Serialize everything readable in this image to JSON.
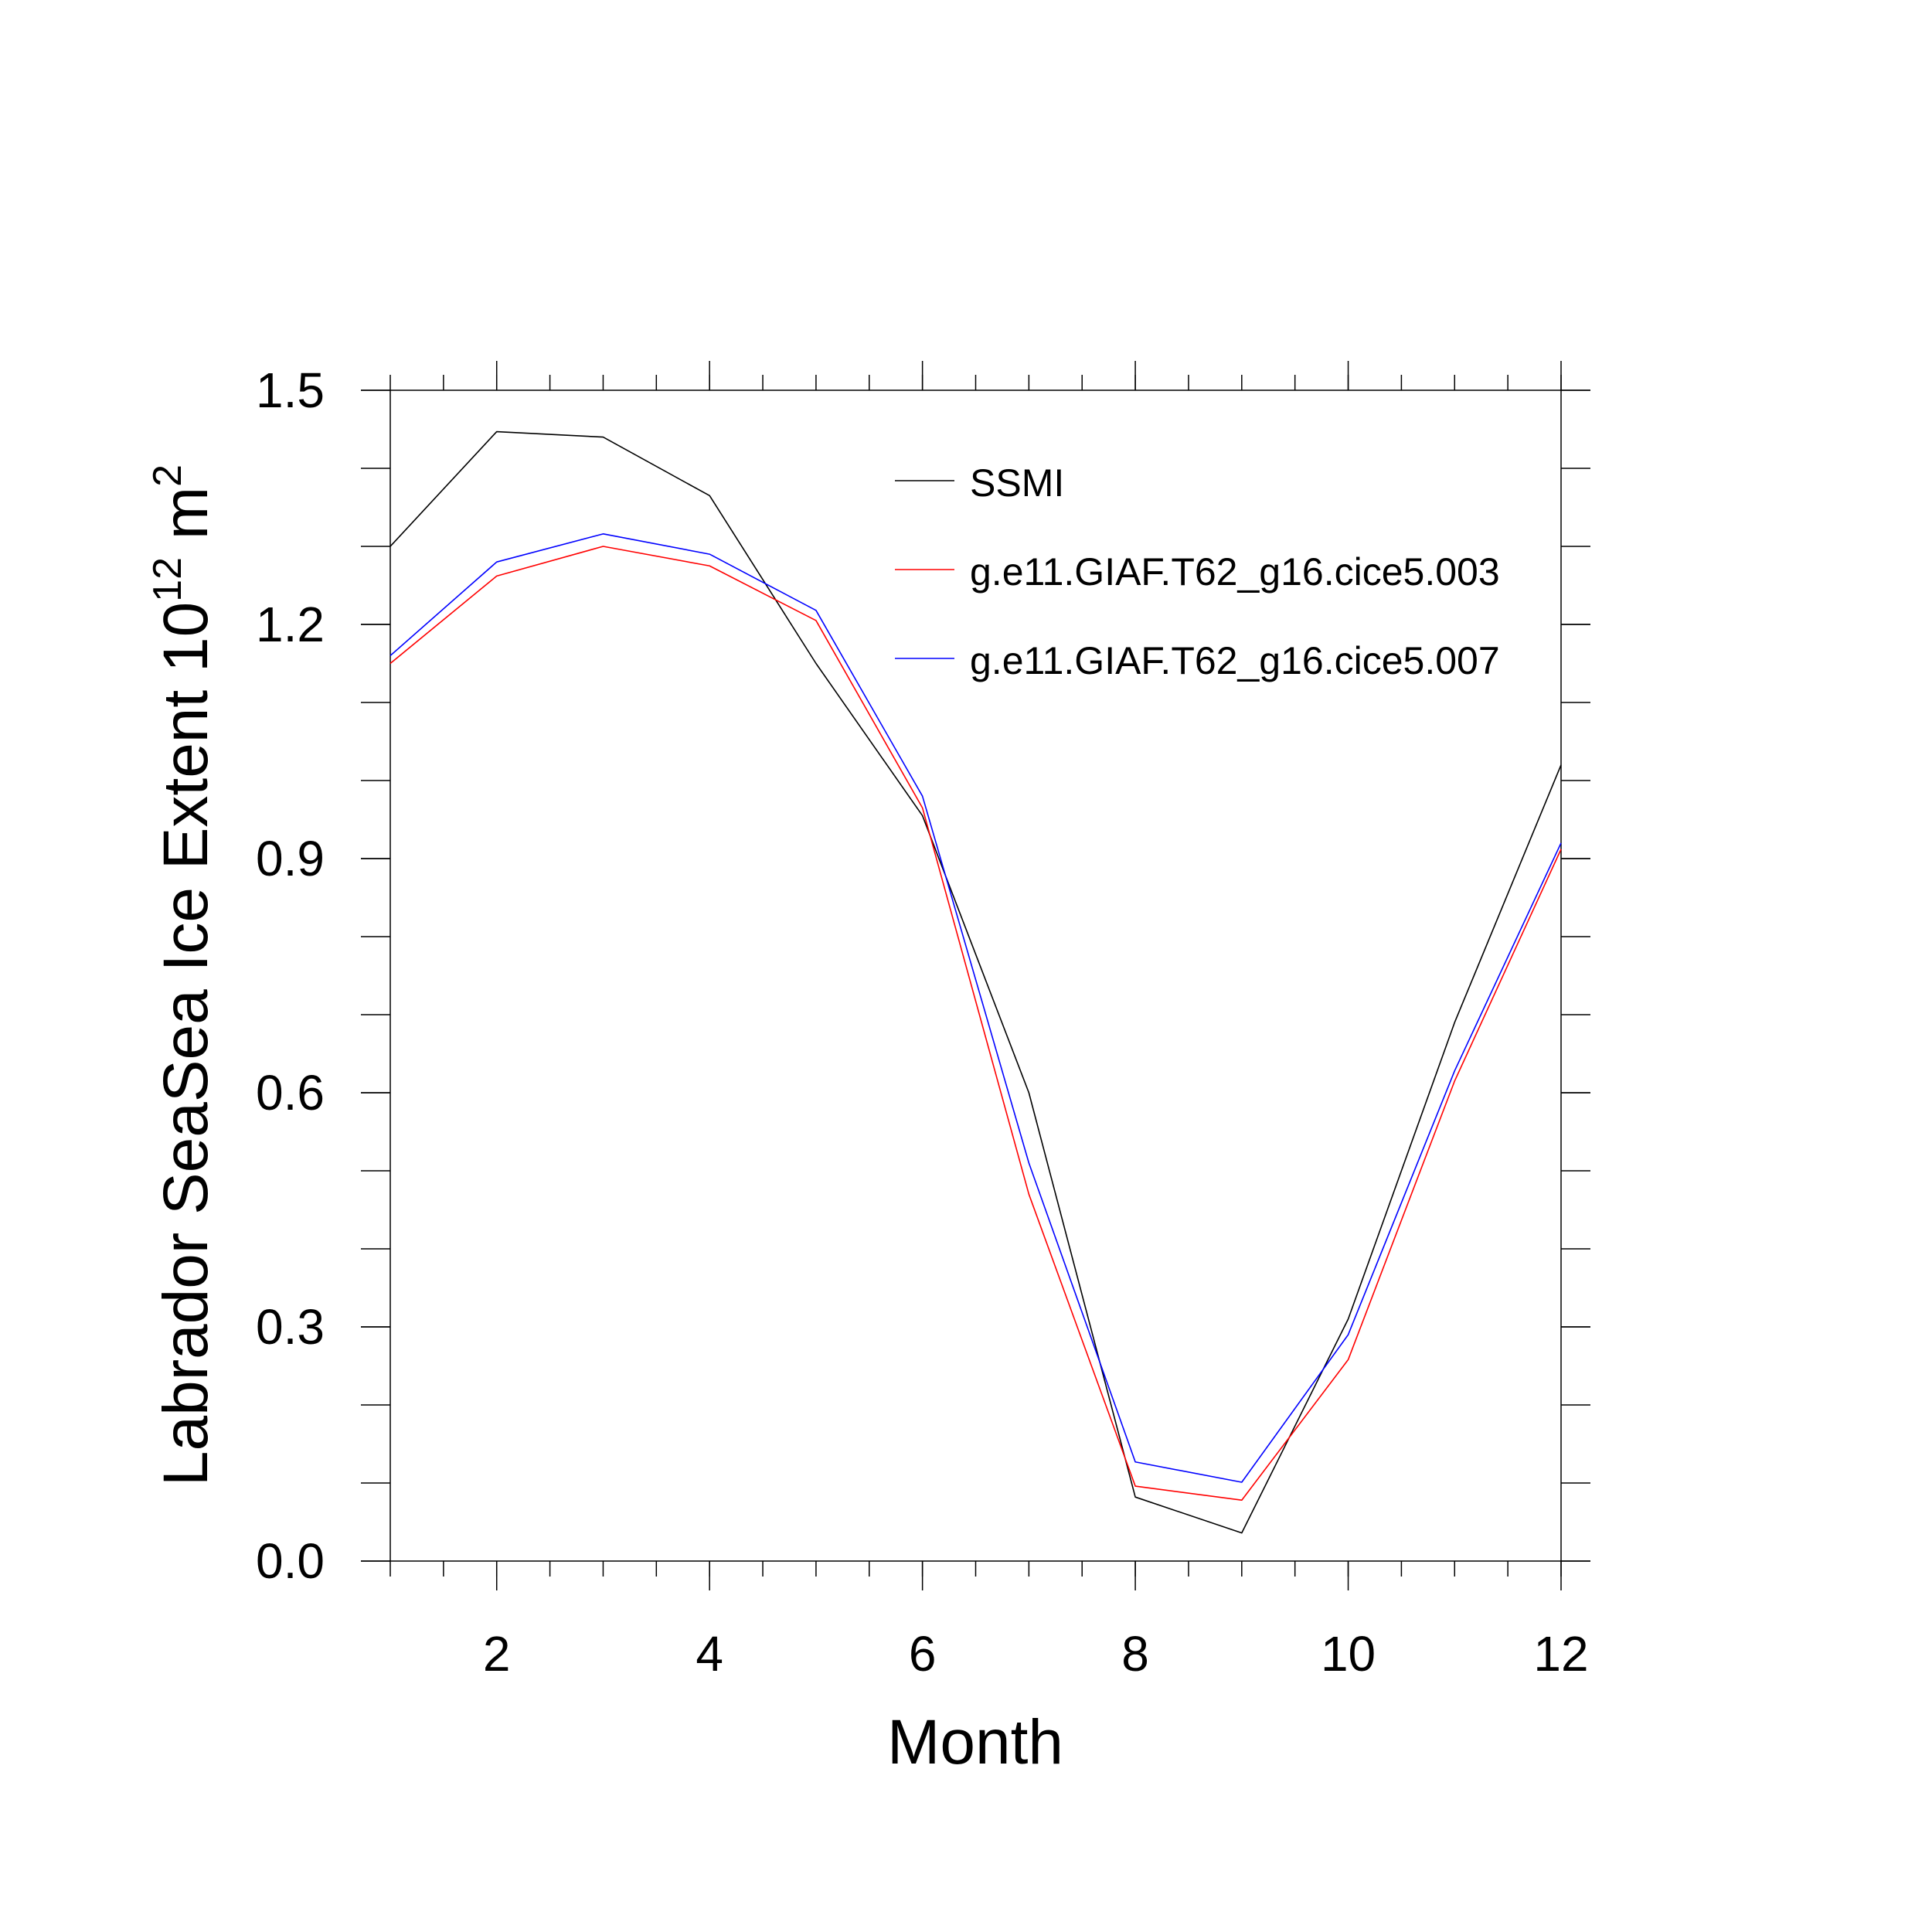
{
  "chart_data": {
    "type": "line",
    "title": "",
    "xlabel": "Month",
    "ylabel": "Labrador SeaSea Ice Extent 10",
    "ylabel_sup": "12",
    "ylabel_unit": "m",
    "ylabel_unit_sup": "2",
    "xlim": [
      1,
      12
    ],
    "ylim": [
      0.0,
      1.5
    ],
    "x_ticks": [
      2,
      4,
      6,
      8,
      10,
      12
    ],
    "x_tick_labels": [
      "2",
      "4",
      "6",
      "8",
      "10",
      "12"
    ],
    "y_ticks": [
      0.0,
      0.3,
      0.6,
      0.9,
      1.2,
      1.5
    ],
    "y_tick_labels": [
      "0.0",
      "0.3",
      "0.6",
      "0.9",
      "1.2",
      "1.5"
    ],
    "grid": false,
    "legend_position": "top-right",
    "x": [
      1,
      2,
      3,
      4,
      5,
      6,
      7,
      8,
      9,
      10,
      11,
      12
    ],
    "series": [
      {
        "name": "SSMI",
        "color": "#000000",
        "values": [
          1.3,
          1.447,
          1.44,
          1.365,
          1.15,
          0.955,
          0.6,
          0.082,
          0.036,
          0.31,
          0.69,
          1.02
        ]
      },
      {
        "name": "g.e11.GIAF.T62_g16.cice5.003",
        "color": "#ff0000",
        "values": [
          1.15,
          1.262,
          1.3,
          1.275,
          1.205,
          0.965,
          0.47,
          0.096,
          0.078,
          0.258,
          0.615,
          0.912
        ]
      },
      {
        "name": "g.e11.GIAF.T62_g16.cice5.007",
        "color": "#0000ff",
        "values": [
          1.16,
          1.28,
          1.316,
          1.29,
          1.218,
          0.98,
          0.51,
          0.127,
          0.101,
          0.29,
          0.628,
          0.92
        ]
      }
    ]
  }
}
